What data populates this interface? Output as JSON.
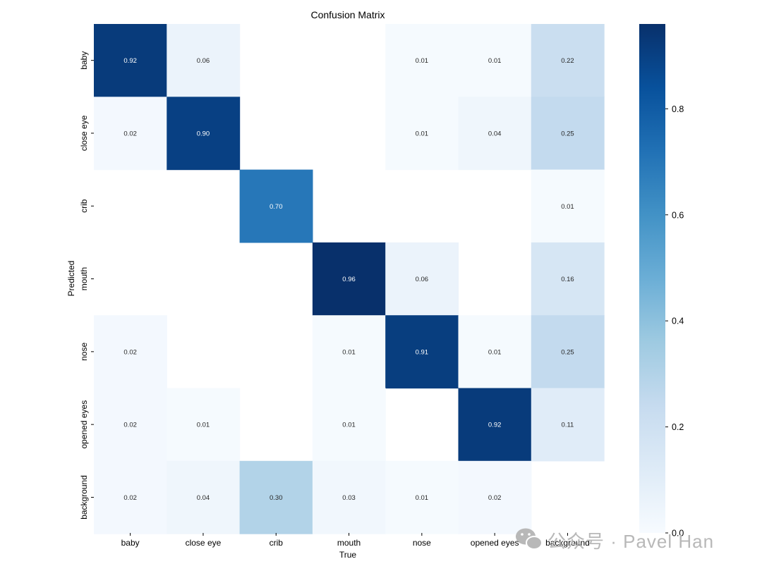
{
  "chart_data": {
    "type": "heatmap",
    "title": "Confusion Matrix",
    "xlabel": "True",
    "ylabel": "Predicted",
    "x_categories": [
      "baby",
      "close eye",
      "crib",
      "mouth",
      "nose",
      "opened eyes",
      "background"
    ],
    "y_categories": [
      "baby",
      "close eye",
      "crib",
      "mouth",
      "nose",
      "opened eyes",
      "background"
    ],
    "values": [
      [
        0.92,
        0.06,
        null,
        null,
        0.01,
        0.01,
        0.22
      ],
      [
        0.02,
        0.9,
        null,
        null,
        0.01,
        0.04,
        0.25
      ],
      [
        null,
        null,
        0.7,
        null,
        null,
        null,
        0.01
      ],
      [
        null,
        null,
        null,
        0.96,
        0.06,
        null,
        0.16
      ],
      [
        0.02,
        null,
        null,
        0.01,
        0.91,
        0.01,
        0.25
      ],
      [
        0.02,
        0.01,
        null,
        0.01,
        null,
        0.92,
        0.11
      ],
      [
        0.02,
        0.04,
        0.3,
        0.03,
        0.01,
        0.02,
        null
      ]
    ],
    "colormap": "Blues",
    "colorbar": {
      "range": [
        0.0,
        0.96
      ],
      "ticks": [
        "0.0",
        "0.2",
        "0.4",
        "0.6",
        "0.8"
      ]
    }
  },
  "watermark": "公众号 · Pavel Han"
}
